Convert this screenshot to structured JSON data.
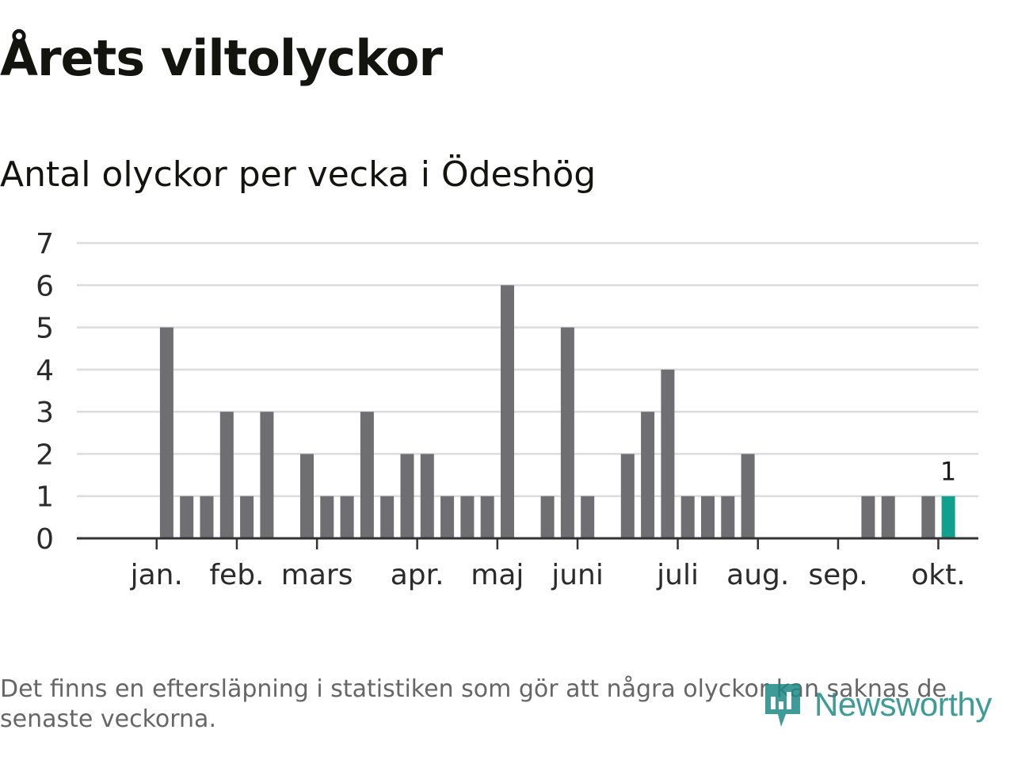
{
  "title": "Årets viltolyckor",
  "subtitle": "Antal olyckor per vecka i Ödeshög",
  "footnote": "Det finns en eftersläpning i statistiken som gör att några olyckor kan saknas de senaste veckorna.",
  "brand": {
    "name": "Newsworthy",
    "color": "#1e8a86",
    "icon": "newsworthy-logo-icon"
  },
  "chart_data": {
    "type": "bar",
    "title": "Antal olyckor per vecka i Ödeshög",
    "xlabel": "",
    "ylabel": "",
    "ylim": [
      0,
      7
    ],
    "yticks": [
      0,
      1,
      2,
      3,
      4,
      5,
      6,
      7
    ],
    "grid": true,
    "bar_color": "#6e6e73",
    "highlight_color": "#12a08e",
    "weeks": [
      1,
      2,
      3,
      4,
      5,
      6,
      7,
      8,
      9,
      10,
      11,
      12,
      13,
      14,
      15,
      16,
      17,
      18,
      19,
      20,
      21,
      22,
      23,
      24,
      25,
      26,
      27,
      28,
      29,
      30,
      31,
      32,
      33,
      34,
      35,
      36,
      37,
      38,
      39,
      40,
      41,
      42,
      43,
      44
    ],
    "values": [
      0,
      0,
      0,
      5,
      1,
      1,
      3,
      1,
      3,
      0,
      2,
      1,
      1,
      3,
      1,
      2,
      2,
      1,
      1,
      1,
      6,
      0,
      1,
      5,
      1,
      0,
      2,
      3,
      4,
      1,
      1,
      1,
      2,
      0,
      0,
      0,
      0,
      0,
      1,
      1,
      0,
      1,
      1,
      0
    ],
    "highlight_week": 43,
    "highlight_label": "1",
    "month_labels": [
      {
        "label": "jan.",
        "week": 3.5
      },
      {
        "label": "feb.",
        "week": 7.5
      },
      {
        "label": "mars",
        "week": 11.5
      },
      {
        "label": "apr.",
        "week": 16.5
      },
      {
        "label": "maj",
        "week": 20.5
      },
      {
        "label": "juni",
        "week": 24.5
      },
      {
        "label": "juli",
        "week": 29.5
      },
      {
        "label": "aug.",
        "week": 33.5
      },
      {
        "label": "sep.",
        "week": 37.5
      },
      {
        "label": "okt.",
        "week": 42.5
      }
    ]
  }
}
